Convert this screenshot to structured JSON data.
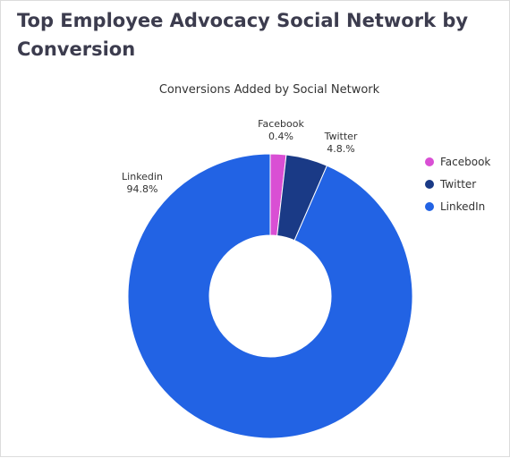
{
  "page": {
    "title": "Top Employee Advocacy Social Network by Conversion"
  },
  "chart_data": {
    "type": "pie",
    "variant": "donut",
    "title": "Conversions Added by Social Network",
    "legend_position": "right",
    "slices": [
      {
        "name": "Facebook",
        "label": "Facebook",
        "percent": 0.4,
        "percent_label": "0.4%",
        "color": "#d94fd4"
      },
      {
        "name": "Twitter",
        "label": "Twitter",
        "percent": 4.8,
        "percent_label": "4.8.%",
        "color": "#1a3a86"
      },
      {
        "name": "LinkedIn",
        "label": "Linkedin",
        "percent": 94.8,
        "percent_label": "94.8%",
        "color": "#2263e4"
      }
    ]
  }
}
